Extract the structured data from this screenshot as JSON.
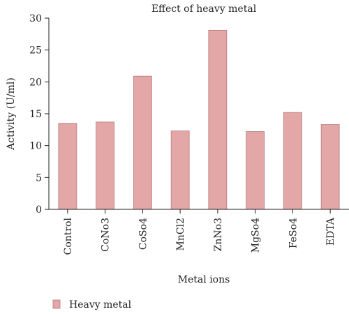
{
  "chart_data": {
    "type": "bar",
    "title": "Effect of heavy metal",
    "xlabel": "Metal ions",
    "ylabel": "Activity (U/ml)",
    "categories": [
      "Control",
      "CoNo3",
      "CoSo4",
      "MnCl2",
      "ZnNo3",
      "MgSo4",
      "FeSo4",
      "EDTA"
    ],
    "series": [
      {
        "name": "Heavy metal",
        "values": [
          13.5,
          13.7,
          20.9,
          12.3,
          28.1,
          12.2,
          15.2,
          13.3
        ]
      }
    ],
    "ylim": [
      0,
      30
    ],
    "yticks": [
      "0",
      "5",
      "10",
      "15",
      "20",
      "25",
      "30"
    ],
    "grid": false,
    "legend_position": "bottom-left",
    "colors": {
      "bar_fill": "#e3a7a8",
      "bar_stroke": "#b77779",
      "axis": "#231f20"
    }
  }
}
